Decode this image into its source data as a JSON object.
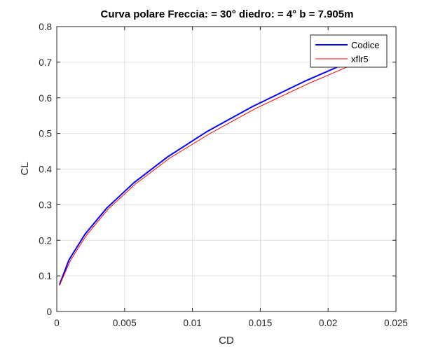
{
  "chart_data": {
    "type": "line",
    "title": "Curva polare Freccia: = 30° diedro: = 4° b = 7.905m",
    "xlabel": "CD",
    "ylabel": "CL",
    "xlim": [
      0,
      0.025
    ],
    "ylim": [
      0,
      0.8
    ],
    "x_ticks": [
      "0",
      "0.005",
      "0.01",
      "0.015",
      "0.02",
      "0.025"
    ],
    "y_ticks": [
      "0",
      "0.1",
      "0.2",
      "0.3",
      "0.4",
      "0.5",
      "0.6",
      "0.7",
      "0.8"
    ],
    "grid": true,
    "legend_position": "top-right",
    "series": [
      {
        "name": "Codice",
        "color": "#0000ff",
        "x": [
          0.0002,
          0.0009,
          0.0021,
          0.0037,
          0.0057,
          0.0082,
          0.0111,
          0.0144,
          0.0183,
          0.0215
        ],
        "y": [
          0.075,
          0.145,
          0.218,
          0.291,
          0.362,
          0.435,
          0.506,
          0.575,
          0.647,
          0.7
        ]
      },
      {
        "name": "xflr5",
        "color": "#ff0000",
        "x": [
          0.0002,
          0.001,
          0.0022,
          0.0038,
          0.0058,
          0.0083,
          0.0113,
          0.0146,
          0.0186,
          0.0218
        ],
        "y": [
          0.073,
          0.143,
          0.215,
          0.288,
          0.358,
          0.43,
          0.5,
          0.569,
          0.641,
          0.693
        ]
      }
    ]
  }
}
